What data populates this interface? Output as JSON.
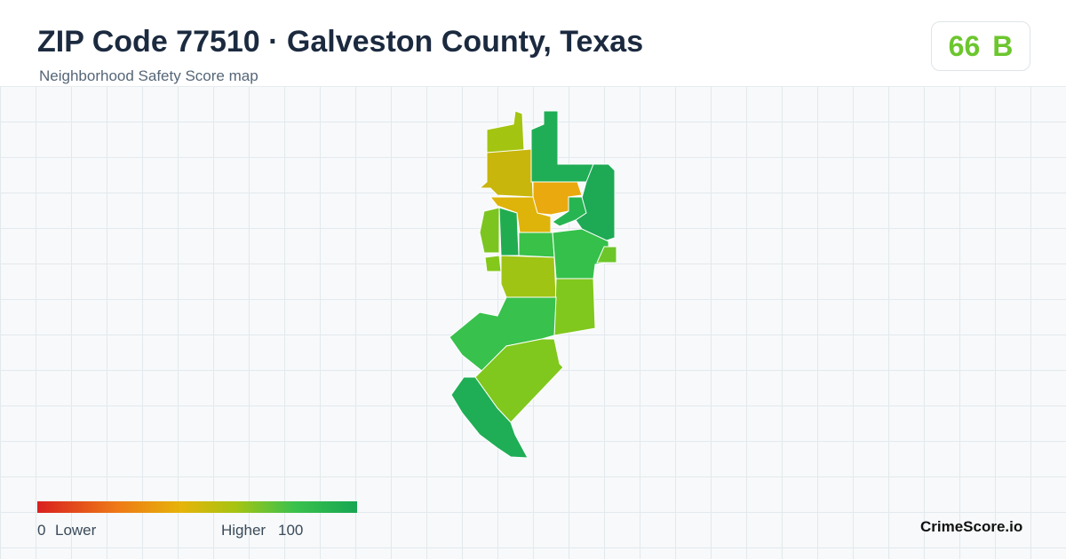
{
  "header": {
    "title": "ZIP Code 77510 · Galveston County, Texas",
    "subtitle": "Neighborhood Safety Score map"
  },
  "score": {
    "value": 66,
    "grade": "B"
  },
  "legend": {
    "min": 0,
    "min_label": "Lower",
    "max_label": "Higher",
    "max": 100
  },
  "brand": "CrimeScore.io"
}
